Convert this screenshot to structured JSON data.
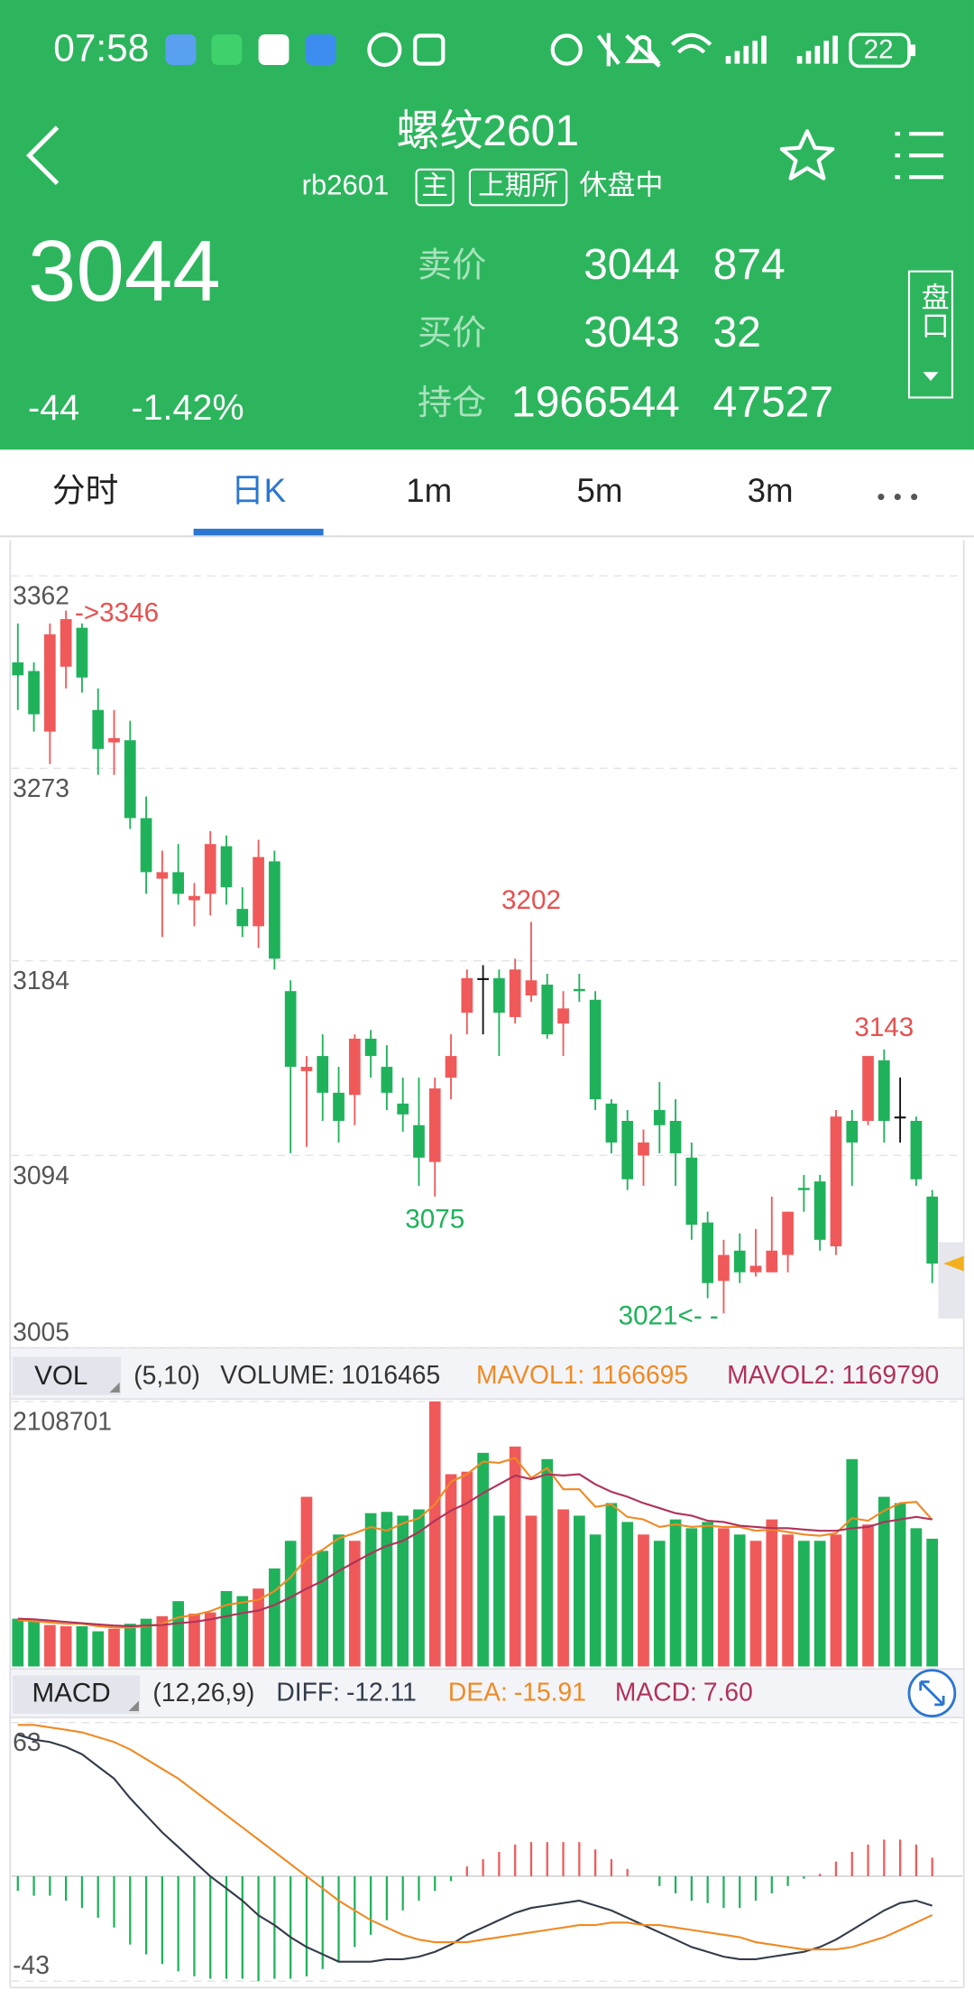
{
  "status_bar": {
    "time": "07:58",
    "battery": "22"
  },
  "header": {
    "title": "螺纹2601",
    "code": "rb2601",
    "tags": [
      "主",
      "上期所"
    ],
    "status": "休盘中"
  },
  "quote": {
    "price": 3044,
    "change": -44,
    "change_pct": {
      "value": -1.42,
      "label": "-1.42%"
    },
    "book": [
      {
        "label": "卖价",
        "values": [
          3044,
          874
        ]
      },
      {
        "label": "买价",
        "values": [
          3043,
          32
        ]
      },
      {
        "label": "持仓",
        "values": [
          1966544,
          47527
        ]
      }
    ],
    "panel_button": "盘口"
  },
  "tabs": [
    "分时",
    "日K",
    "1m",
    "5m",
    "3m"
  ],
  "active_tab": 1,
  "chart_data": [
    {
      "type": "candlestick",
      "open": [
        3322,
        3318,
        3290,
        3320,
        3338,
        3300,
        3285,
        3286,
        3250,
        3222,
        3225,
        3212,
        3215,
        3237,
        3208,
        3200,
        3230,
        3170,
        3133,
        3140,
        3123,
        3122,
        3148,
        3135,
        3118,
        3108,
        3091,
        3130,
        3160,
        3176,
        3176,
        3158,
        3168,
        3173,
        3155,
        3171,
        3166,
        3118,
        3110,
        3094,
        3115,
        3110,
        3093,
        3063,
        3036,
        3050,
        3040,
        3040,
        3048,
        3079,
        3082,
        3052,
        3110,
        3110,
        3138,
        3112,
        3110,
        3075
      ],
      "high": [
        3340,
        3322,
        3340,
        3346,
        3340,
        3310,
        3300,
        3295,
        3260,
        3235,
        3238,
        3220,
        3244,
        3242,
        3218,
        3240,
        3235,
        3175,
        3140,
        3150,
        3135,
        3150,
        3152,
        3145,
        3130,
        3130,
        3130,
        3150,
        3180,
        3182,
        3180,
        3185,
        3202,
        3178,
        3170,
        3178,
        3170,
        3120,
        3115,
        3106,
        3128,
        3120,
        3100,
        3068,
        3055,
        3058,
        3060,
        3075,
        3068,
        3085,
        3085,
        3115,
        3115,
        3140,
        3143,
        3130,
        3112,
        3078
      ],
      "low": [
        3300,
        3290,
        3275,
        3310,
        3308,
        3270,
        3270,
        3245,
        3215,
        3195,
        3210,
        3200,
        3205,
        3210,
        3195,
        3190,
        3180,
        3095,
        3098,
        3110,
        3100,
        3108,
        3130,
        3115,
        3105,
        3080,
        3075,
        3120,
        3150,
        3150,
        3140,
        3155,
        3165,
        3148,
        3140,
        3165,
        3115,
        3095,
        3078,
        3080,
        3095,
        3080,
        3055,
        3028,
        3021,
        3035,
        3038,
        3040,
        3040,
        3068,
        3050,
        3048,
        3080,
        3108,
        3100,
        3100,
        3080,
        3035
      ],
      "close": [
        3316,
        3298,
        3335,
        3342,
        3315,
        3282,
        3287,
        3250,
        3225,
        3225,
        3215,
        3214,
        3238,
        3218,
        3200,
        3232,
        3185,
        3135,
        3135,
        3123,
        3110,
        3148,
        3140,
        3123,
        3113,
        3093,
        3125,
        3140,
        3176,
        3176,
        3160,
        3180,
        3175,
        3150,
        3162,
        3170,
        3120,
        3100,
        3083,
        3100,
        3108,
        3095,
        3062,
        3035,
        3048,
        3040,
        3043,
        3050,
        3068,
        3078,
        3055,
        3112,
        3100,
        3140,
        3110,
        3112,
        3083,
        3044
      ],
      "up_color": "#f0595a",
      "down_color": "#1fb25b",
      "doji_color": "#111111",
      "ylim": [
        3005,
        3362
      ],
      "yticks": [
        3362,
        3273,
        3184,
        3094,
        3005
      ],
      "grid": true,
      "annotations": [
        {
          "label": "->3346",
          "value": 3346,
          "at": "high",
          "color": "#e8504f"
        },
        {
          "label": "3202",
          "value": 3202,
          "at": "high",
          "color": "#e8504f"
        },
        {
          "label": "3075",
          "value": 3075,
          "at": "low",
          "color": "#1fb25b"
        },
        {
          "label": "3021<- -",
          "value": 3021,
          "at": "low",
          "color": "#1fb25b"
        },
        {
          "label": "3143",
          "value": 3143,
          "at": "high",
          "color": "#e8504f"
        }
      ]
    },
    {
      "type": "volume",
      "title": "VOL",
      "params": "(5,10)",
      "ylim": [
        0,
        2108701
      ],
      "yticks": [
        2108701
      ],
      "grid": true,
      "series": [
        {
          "name": "VOLUME:",
          "kind": "bar",
          "color": "#333333",
          "values": [
            380000,
            360000,
            330000,
            320000,
            320000,
            280000,
            300000,
            340000,
            380000,
            400000,
            520000,
            420000,
            430000,
            600000,
            560000,
            620000,
            780000,
            1000000,
            1350000,
            920000,
            1050000,
            1000000,
            1220000,
            1230000,
            1200000,
            1250000,
            2108701,
            1530000,
            1550000,
            1700000,
            1200000,
            1750000,
            1200000,
            1650000,
            1250000,
            1200000,
            1050000,
            1300000,
            1150000,
            1050000,
            1000000,
            1170000,
            1100000,
            1150000,
            1100000,
            1050000,
            1000000,
            1170000,
            1050000,
            1000000,
            1000000,
            1050000,
            1650000,
            1130000,
            1350000,
            1300000,
            1100000,
            1016465
          ]
        },
        {
          "name": "MAVOL1:",
          "kind": "line",
          "color": "#f08a24",
          "values": [
            370000,
            360000,
            350000,
            340000,
            340000,
            320000,
            310000,
            310000,
            320000,
            340000,
            390000,
            410000,
            440000,
            490000,
            510000,
            530000,
            600000,
            710000,
            860000,
            930000,
            1020000,
            1060000,
            1110000,
            1080000,
            1140000,
            1180000,
            1290000,
            1470000,
            1530000,
            1630000,
            1620000,
            1660000,
            1500000,
            1580000,
            1410000,
            1410000,
            1270000,
            1290000,
            1190000,
            1170000,
            1110000,
            1130000,
            1110000,
            1120000,
            1110000,
            1110000,
            1080000,
            1090000,
            1070000,
            1050000,
            1040000,
            1060000,
            1180000,
            1160000,
            1240000,
            1300000,
            1310000,
            1166695
          ]
        },
        {
          "name": "MAVOL2:",
          "kind": "line",
          "color": "#b0325a",
          "values": [
            380000,
            375000,
            365000,
            355000,
            345000,
            335000,
            325000,
            320000,
            325000,
            330000,
            345000,
            355000,
            375000,
            400000,
            425000,
            445000,
            490000,
            550000,
            620000,
            680000,
            760000,
            830000,
            900000,
            960000,
            1000000,
            1070000,
            1160000,
            1240000,
            1300000,
            1380000,
            1450000,
            1520000,
            1490000,
            1530000,
            1520000,
            1530000,
            1450000,
            1390000,
            1350000,
            1300000,
            1260000,
            1220000,
            1200000,
            1160000,
            1150000,
            1120000,
            1110000,
            1100000,
            1100000,
            1090000,
            1080000,
            1080000,
            1100000,
            1110000,
            1150000,
            1170000,
            1190000,
            1169790
          ]
        }
      ]
    },
    {
      "type": "macd",
      "title": "MACD",
      "params": "(12,26,9)",
      "ylim": [
        -43,
        63
      ],
      "yticks": [
        63,
        -43
      ],
      "grid": true,
      "series": [
        {
          "name": "DIFF:",
          "kind": "line",
          "color": "#333b4a",
          "values": [
            58,
            56,
            55,
            53,
            50,
            45,
            40,
            32,
            25,
            18,
            12,
            6,
            0,
            -5,
            -10,
            -16,
            -20,
            -25,
            -29,
            -32,
            -35,
            -35,
            -35,
            -34,
            -34,
            -33,
            -31,
            -28,
            -24,
            -21,
            -18,
            -15,
            -13,
            -12,
            -11,
            -10,
            -12,
            -14,
            -17,
            -20,
            -23,
            -26,
            -29,
            -31,
            -33,
            -34,
            -34,
            -33,
            -32,
            -31,
            -29,
            -26,
            -22,
            -18,
            -14,
            -11,
            -10,
            -12.11
          ]
        },
        {
          "name": "DEA:",
          "kind": "line",
          "color": "#f08a24",
          "values": [
            62,
            62,
            61,
            60,
            59,
            57,
            55,
            52,
            48,
            44,
            40,
            35,
            30,
            25,
            20,
            15,
            10,
            5,
            0,
            -5,
            -10,
            -14,
            -18,
            -21,
            -24,
            -26,
            -27,
            -27,
            -27,
            -26,
            -25,
            -24,
            -23,
            -22,
            -21,
            -20,
            -20,
            -19,
            -19,
            -20,
            -20,
            -21,
            -22,
            -23,
            -24,
            -25,
            -27,
            -28,
            -29,
            -30,
            -30,
            -30,
            -29,
            -27,
            -25,
            -22,
            -19,
            -15.91
          ]
        },
        {
          "name": "MACD:",
          "kind": "bar",
          "color": "#b0325a",
          "values": [
            -6,
            -8,
            -8,
            -10,
            -13,
            -17,
            -21,
            -28,
            -32,
            -36,
            -39,
            -41,
            -42,
            -42,
            -42,
            -43,
            -42,
            -42,
            -41,
            -38,
            -35,
            -29,
            -24,
            -18,
            -14,
            -10,
            -6,
            -2,
            4,
            7,
            10,
            13,
            14,
            14,
            14,
            14,
            11,
            7,
            3,
            0,
            -4,
            -7,
            -10,
            -11,
            -13,
            -13,
            -10,
            -7,
            -4,
            -1,
            1,
            6,
            10,
            13,
            15,
            15,
            13,
            7.6
          ],
          "value_labels": [
            null,
            null,
            null,
            null,
            null,
            null,
            null,
            null,
            null,
            null,
            null,
            null,
            null,
            null,
            null,
            null,
            null,
            null,
            null,
            null,
            null,
            null,
            null,
            null,
            null,
            null,
            null,
            null,
            null,
            null,
            null,
            null,
            null,
            null,
            null,
            null,
            null,
            null,
            null,
            null,
            null,
            null,
            null,
            null,
            null,
            null,
            null,
            null,
            null,
            null,
            null,
            null,
            null,
            null,
            null,
            null,
            null,
            "7.60"
          ]
        }
      ]
    }
  ]
}
